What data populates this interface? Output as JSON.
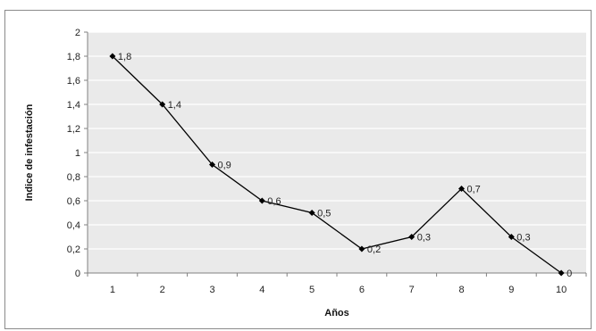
{
  "chart_data": {
    "type": "line",
    "title": "",
    "xlabel": "Años",
    "ylabel": "Indice de infestación",
    "categories": [
      "1",
      "2",
      "3",
      "4",
      "5",
      "6",
      "7",
      "8",
      "9",
      "10"
    ],
    "x": [
      1,
      2,
      3,
      4,
      5,
      6,
      7,
      8,
      9,
      10
    ],
    "values": [
      1.8,
      1.4,
      0.9,
      0.6,
      0.5,
      0.2,
      0.3,
      0.7,
      0.3,
      0
    ],
    "data_labels": [
      "1,8",
      "1,4",
      "0,9",
      "0,6",
      "0,5",
      "0,2",
      "0,3",
      "0,7",
      "0,3",
      "0"
    ],
    "ylim": [
      0,
      2
    ],
    "yticks": [
      0,
      0.2,
      0.4,
      0.6,
      0.8,
      1,
      1.2,
      1.4,
      1.6,
      1.8,
      2
    ],
    "ytick_labels": [
      "0",
      "0,2",
      "0,4",
      "0,6",
      "0,8",
      "1",
      "1,2",
      "1,4",
      "1,6",
      "1,8",
      "2"
    ],
    "grid": true,
    "legend": "none",
    "colors": {
      "plot_area": "#eaeaea",
      "gridline": "#ffffff",
      "line": "#000000",
      "marker": "#000000",
      "axis": "#808080"
    }
  }
}
